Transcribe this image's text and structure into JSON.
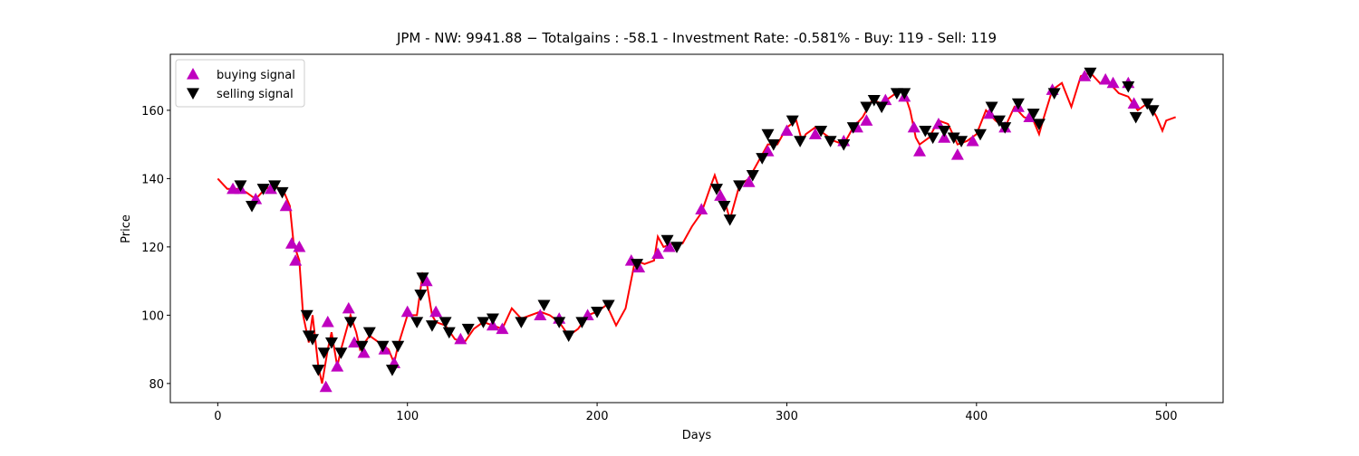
{
  "chart_data": {
    "type": "line",
    "title": "JPM - NW: 9941.88 − Totalgains : -58.1 - Investment Rate: -0.581% - Buy: 119 - Sell: 119",
    "xlabel": "Days",
    "ylabel": "Price",
    "xlim": [
      -25,
      530
    ],
    "ylim": [
      74.4,
      176.4
    ],
    "xticks": [
      0,
      100,
      200,
      300,
      400,
      500
    ],
    "yticks": [
      80,
      100,
      120,
      140,
      160
    ],
    "grid": false,
    "legend": "upper left",
    "series": [
      {
        "type": "line",
        "color": "#ff0000",
        "x": [
          0,
          5,
          10,
          15,
          20,
          25,
          30,
          35,
          38,
          40,
          43,
          45,
          48,
          50,
          53,
          55,
          58,
          60,
          63,
          65,
          70,
          73,
          75,
          80,
          85,
          90,
          93,
          95,
          100,
          105,
          108,
          110,
          113,
          115,
          120,
          125,
          130,
          135,
          140,
          145,
          150,
          155,
          160,
          165,
          170,
          175,
          180,
          185,
          190,
          195,
          200,
          205,
          210,
          215,
          220,
          225,
          230,
          232,
          235,
          240,
          245,
          250,
          255,
          260,
          262,
          265,
          268,
          270,
          275,
          280,
          285,
          290,
          295,
          300,
          305,
          308,
          310,
          315,
          320,
          325,
          330,
          335,
          340,
          343,
          345,
          350,
          355,
          360,
          362,
          365,
          368,
          370,
          375,
          380,
          385,
          390,
          395,
          400,
          405,
          410,
          415,
          420,
          425,
          430,
          433,
          435,
          440,
          445,
          450,
          455,
          460,
          465,
          470,
          475,
          480,
          485,
          490,
          493,
          495,
          498,
          500,
          505
        ],
        "values": [
          140,
          137,
          137,
          136,
          134,
          137,
          138,
          136,
          132,
          121,
          116,
          100,
          92,
          100,
          85,
          80,
          90,
          95,
          85,
          90,
          100,
          95,
          90,
          94,
          92,
          90,
          86,
          91,
          100,
          100,
          112,
          110,
          100,
          98,
          97,
          93,
          92,
          96,
          98,
          97,
          96,
          102,
          99,
          100,
          101,
          100,
          98,
          94,
          96,
          100,
          101,
          103,
          97,
          102,
          116,
          115,
          116,
          123,
          120,
          121,
          121,
          126,
          130,
          138,
          141,
          136,
          132,
          128,
          138,
          140,
          145,
          150,
          150,
          155,
          157,
          151,
          153,
          155,
          153,
          151,
          150,
          155,
          158,
          161,
          163,
          162,
          164,
          166,
          165,
          160,
          152,
          150,
          152,
          157,
          156,
          150,
          151,
          153,
          160,
          157,
          155,
          161,
          158,
          157,
          153,
          157,
          166,
          168,
          161,
          170,
          171,
          168,
          168,
          165,
          164,
          160,
          162,
          160,
          158,
          154,
          157,
          158
        ]
      },
      {
        "type": "scatter",
        "name": "buying signal",
        "color": "#bf00bf",
        "marker": "up",
        "x": [
          8,
          12,
          20,
          28,
          36,
          39,
          41,
          43,
          57,
          58,
          63,
          69,
          72,
          77,
          88,
          93,
          100,
          110,
          115,
          128,
          145,
          150,
          170,
          180,
          195,
          218,
          222,
          232,
          238,
          255,
          265,
          280,
          290,
          300,
          315,
          330,
          337,
          342,
          352,
          362,
          367,
          370,
          380,
          383,
          390,
          398,
          407,
          415,
          422,
          428,
          440,
          457,
          468,
          472,
          480,
          483
        ],
        "values": [
          137,
          137,
          134,
          137,
          132,
          121,
          116,
          120,
          79,
          98,
          85,
          102,
          92,
          89,
          90,
          86,
          101,
          110,
          101,
          93,
          97,
          96,
          100,
          99,
          100,
          116,
          114,
          118,
          120,
          131,
          135,
          139,
          148,
          154,
          153,
          151,
          155,
          157,
          163,
          164,
          155,
          148,
          156,
          152,
          147,
          151,
          159,
          155,
          161,
          158,
          166,
          170,
          169,
          168,
          168,
          162
        ]
      },
      {
        "type": "scatter",
        "name": "selling signal",
        "color": "#000000",
        "marker": "down",
        "x": [
          12,
          18,
          24,
          30,
          34,
          47,
          48,
          50,
          53,
          56,
          60,
          65,
          70,
          76,
          80,
          87,
          92,
          95,
          105,
          107,
          108,
          113,
          120,
          122,
          132,
          140,
          145,
          160,
          172,
          180,
          185,
          192,
          200,
          206,
          221,
          237,
          242,
          263,
          267,
          270,
          275,
          282,
          287,
          290,
          293,
          303,
          307,
          318,
          323,
          330,
          335,
          342,
          346,
          350,
          358,
          362,
          373,
          377,
          383,
          388,
          392,
          402,
          408,
          412,
          415,
          422,
          430,
          433,
          441,
          460,
          480,
          484,
          490,
          493
        ],
        "values": [
          138,
          132,
          137,
          138,
          136,
          100,
          94,
          93,
          84,
          89,
          92,
          89,
          98,
          91,
          95,
          91,
          84,
          91,
          98,
          106,
          111,
          97,
          98,
          95,
          96,
          98,
          99,
          98,
          103,
          98,
          94,
          98,
          101,
          103,
          115,
          122,
          120,
          137,
          132,
          128,
          138,
          141,
          146,
          153,
          150,
          157,
          151,
          154,
          151,
          150,
          155,
          161,
          163,
          161,
          165,
          165,
          154,
          152,
          154,
          152,
          151,
          153,
          161,
          157,
          155,
          162,
          159,
          156,
          165,
          171,
          167,
          158,
          162,
          160
        ]
      }
    ]
  }
}
